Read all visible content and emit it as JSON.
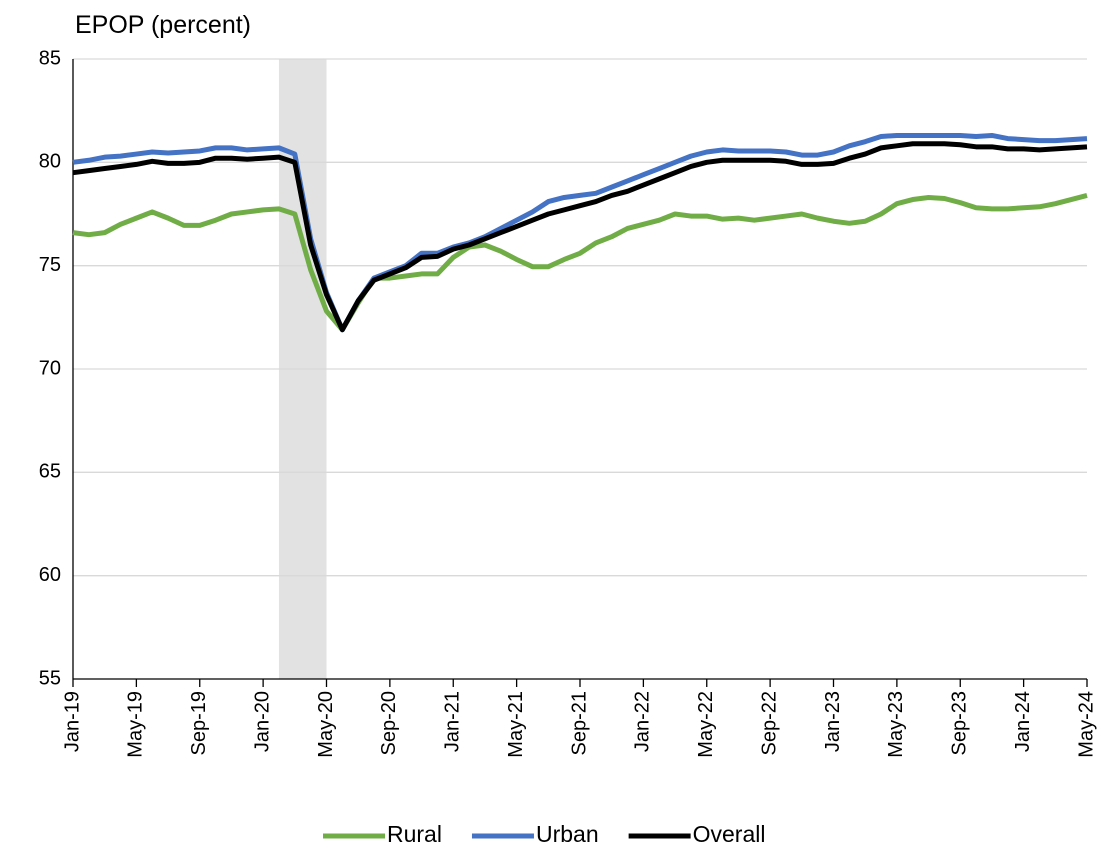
{
  "chart_data": {
    "type": "line",
    "title": "EPOP (percent)",
    "categories": [
      "Jan-19",
      null,
      null,
      null,
      "May-19",
      null,
      null,
      null,
      "Sep-19",
      null,
      null,
      null,
      "Jan-20",
      null,
      null,
      null,
      "May-20",
      null,
      null,
      null,
      "Sep-20",
      null,
      null,
      null,
      "Jan-21",
      null,
      null,
      null,
      "May-21",
      null,
      null,
      null,
      "Sep-21",
      null,
      null,
      null,
      "Jan-22",
      null,
      null,
      null,
      "May-22",
      null,
      null,
      null,
      "Sep-22",
      null,
      null,
      null,
      "Jan-23",
      null,
      null,
      null,
      "May-23",
      null,
      null,
      null,
      "Sep-23",
      null,
      null,
      null,
      "Jan-24",
      null,
      null,
      null,
      "May-24"
    ],
    "series": [
      {
        "name": "Rural",
        "color": "#70ad47",
        "values": [
          76.6,
          76.5,
          76.6,
          77.0,
          77.3,
          77.6,
          77.3,
          76.95,
          76.95,
          77.2,
          77.5,
          77.6,
          77.7,
          77.75,
          77.5,
          74.8,
          72.8,
          71.9,
          73.2,
          74.4,
          74.4,
          74.5,
          74.6,
          74.6,
          75.4,
          75.9,
          76.0,
          75.7,
          75.3,
          74.95,
          74.95,
          75.3,
          75.6,
          76.1,
          76.4,
          76.8,
          77.0,
          77.2,
          77.5,
          77.4,
          77.4,
          77.25,
          77.3,
          77.2,
          77.3,
          77.4,
          77.5,
          77.3,
          77.15,
          77.05,
          77.15,
          77.5,
          78.0,
          78.2,
          78.3,
          78.25,
          78.05,
          77.8,
          77.75,
          77.75,
          77.8,
          77.85,
          78.0,
          78.2,
          78.4
        ]
      },
      {
        "name": "Urban",
        "color": "#4472c4",
        "values": [
          80.0,
          80.1,
          80.25,
          80.3,
          80.4,
          80.5,
          80.45,
          80.5,
          80.55,
          80.7,
          80.7,
          80.6,
          80.65,
          80.7,
          80.4,
          76.3,
          73.7,
          71.9,
          73.3,
          74.4,
          74.7,
          75.0,
          75.6,
          75.6,
          75.9,
          76.1,
          76.4,
          76.8,
          77.2,
          77.6,
          78.1,
          78.3,
          78.4,
          78.5,
          78.8,
          79.1,
          79.4,
          79.7,
          80.0,
          80.3,
          80.5,
          80.6,
          80.55,
          80.55,
          80.55,
          80.5,
          80.35,
          80.35,
          80.5,
          80.8,
          81.0,
          81.25,
          81.3,
          81.3,
          81.3,
          81.3,
          81.3,
          81.25,
          81.3,
          81.15,
          81.1,
          81.05,
          81.05,
          81.1,
          81.15
        ]
      },
      {
        "name": "Overall",
        "color": "#000000",
        "values": [
          79.5,
          79.6,
          79.7,
          79.8,
          79.9,
          80.05,
          79.95,
          79.95,
          80.0,
          80.2,
          80.2,
          80.15,
          80.2,
          80.25,
          80.0,
          76.0,
          73.6,
          71.9,
          73.3,
          74.3,
          74.6,
          74.9,
          75.4,
          75.45,
          75.8,
          76.0,
          76.3,
          76.6,
          76.9,
          77.2,
          77.5,
          77.7,
          77.9,
          78.1,
          78.4,
          78.6,
          78.9,
          79.2,
          79.5,
          79.8,
          80.0,
          80.1,
          80.1,
          80.1,
          80.1,
          80.05,
          79.9,
          79.9,
          79.95,
          80.2,
          80.4,
          80.7,
          80.8,
          80.9,
          80.9,
          80.9,
          80.85,
          80.75,
          80.75,
          80.65,
          80.65,
          80.6,
          80.65,
          80.7,
          80.75
        ]
      }
    ],
    "highlight": {
      "from": 13,
      "to": 16,
      "color": "#e2e2e2"
    },
    "ylim": [
      55,
      85
    ],
    "yticks": [
      55,
      60,
      65,
      70,
      75,
      80,
      85
    ],
    "grid": true,
    "legend": "bottom"
  }
}
